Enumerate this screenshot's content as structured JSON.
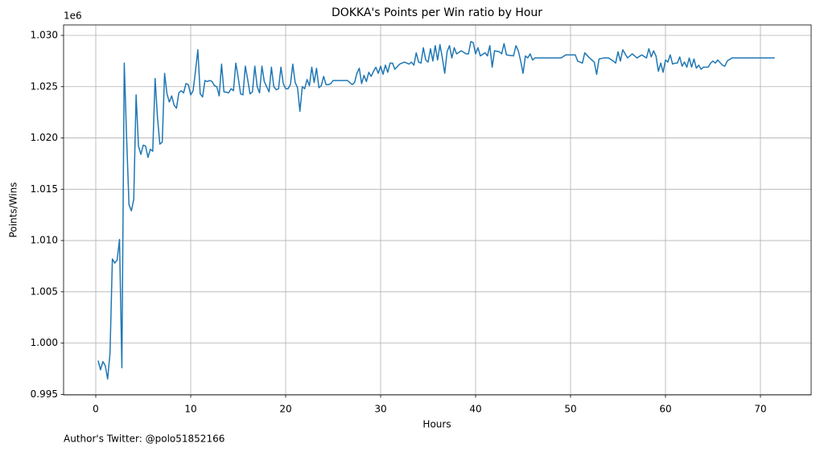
{
  "chart_data": {
    "type": "line",
    "title": "DOKKA's Points per Win ratio by Hour",
    "xlabel": "Hours",
    "ylabel": "Points/Wins",
    "y_offset_label": "1e6",
    "footnote": "Author's Twitter: @polo51852166",
    "x": [
      0.25,
      0.5,
      0.75,
      1,
      1.25,
      1.5,
      1.75,
      2,
      2.25,
      2.5,
      2.75,
      3,
      3.25,
      3.5,
      3.75,
      4,
      4.25,
      4.5,
      4.75,
      5,
      5.25,
      5.5,
      5.75,
      6,
      6.25,
      6.5,
      6.75,
      7,
      7.25,
      7.5,
      7.75,
      8,
      8.25,
      8.5,
      8.75,
      9,
      9.25,
      9.5,
      9.75,
      10,
      10.25,
      10.5,
      10.75,
      11,
      11.25,
      11.5,
      11.75,
      12,
      12.25,
      12.5,
      12.75,
      13,
      13.25,
      13.5,
      14,
      14.25,
      14.5,
      14.75,
      15,
      15.25,
      15.5,
      15.75,
      16,
      16.25,
      16.5,
      16.75,
      17,
      17.25,
      17.5,
      17.75,
      18,
      18.25,
      18.5,
      18.75,
      19,
      19.25,
      19.5,
      19.75,
      20,
      20.25,
      20.5,
      20.75,
      21,
      21.25,
      21.5,
      21.75,
      22,
      22.25,
      22.5,
      22.75,
      23,
      23.25,
      23.5,
      23.75,
      24,
      24.25,
      24.5,
      24.75,
      25,
      26,
      26.5,
      27,
      27.25,
      27.5,
      27.75,
      28,
      28.25,
      28.5,
      28.75,
      29,
      29.25,
      29.5,
      29.75,
      30,
      30.25,
      30.5,
      30.75,
      31,
      31.25,
      31.5,
      32,
      32.5,
      33,
      33.25,
      33.5,
      33.75,
      34,
      34.25,
      34.5,
      34.75,
      35,
      35.25,
      35.5,
      35.75,
      36,
      36.25,
      36.5,
      36.75,
      37,
      37.25,
      37.5,
      37.75,
      38,
      38.5,
      39,
      39.25,
      39.5,
      39.75,
      40,
      40.25,
      40.5,
      41,
      41.25,
      41.5,
      41.75,
      42,
      42.5,
      42.75,
      43,
      43.25,
      44,
      44.25,
      44.5,
      44.75,
      45,
      45.25,
      45.5,
      45.75,
      46,
      46.25,
      47,
      48,
      49,
      49.5,
      50,
      50.5,
      50.75,
      51,
      51.25,
      51.5,
      52,
      52.5,
      52.75,
      53,
      53.5,
      54,
      54.5,
      54.75,
      55,
      55.25,
      55.5,
      56,
      56.5,
      57,
      57.5,
      58,
      58.25,
      58.5,
      58.75,
      59,
      59.25,
      59.5,
      59.75,
      60,
      60.25,
      60.5,
      60.75,
      61,
      61.25,
      61.5,
      61.75,
      62,
      62.25,
      62.5,
      62.75,
      63,
      63.25,
      63.5,
      63.75,
      64,
      64.5,
      64.75,
      65,
      65.25,
      65.5,
      66,
      66.25,
      66.5,
      67,
      71.5
    ],
    "series": [
      {
        "color": "#1f77b4",
        "values": [
          998300,
          997400,
          998200,
          997800,
          996500,
          999000,
          1008200,
          1007800,
          1008100,
          1010100,
          997600,
          1027300,
          1020000,
          1013500,
          1012900,
          1014000,
          1024200,
          1019200,
          1018400,
          1019300,
          1019200,
          1018100,
          1018900,
          1018700,
          1025800,
          1022000,
          1019400,
          1019600,
          1026300,
          1024300,
          1023500,
          1024100,
          1023200,
          1022900,
          1024400,
          1024600,
          1024400,
          1025300,
          1025200,
          1024200,
          1024600,
          1026500,
          1028600,
          1024300,
          1024000,
          1025600,
          1025500,
          1025600,
          1025500,
          1025100,
          1025000,
          1024100,
          1027200,
          1024500,
          1024400,
          1024800,
          1024600,
          1027300,
          1025900,
          1024300,
          1024200,
          1027000,
          1025700,
          1024300,
          1024500,
          1027000,
          1025000,
          1024400,
          1027000,
          1025500,
          1025000,
          1024500,
          1026900,
          1025000,
          1024700,
          1024800,
          1026900,
          1025300,
          1024800,
          1024800,
          1025200,
          1027200,
          1025400,
          1024900,
          1022600,
          1025000,
          1024800,
          1025700,
          1025100,
          1026900,
          1025400,
          1026800,
          1024900,
          1025100,
          1026000,
          1025200,
          1025200,
          1025300,
          1025600,
          1025600,
          1025600,
          1025200,
          1025400,
          1026300,
          1026800,
          1025300,
          1026100,
          1025500,
          1026400,
          1026000,
          1026500,
          1026900,
          1026300,
          1027000,
          1026200,
          1027100,
          1026400,
          1027300,
          1027300,
          1026700,
          1027200,
          1027400,
          1027200,
          1027400,
          1027100,
          1028300,
          1027400,
          1027300,
          1028800,
          1027600,
          1027400,
          1028700,
          1027500,
          1029000,
          1027600,
          1029100,
          1027800,
          1026300,
          1028400,
          1029000,
          1027800,
          1028800,
          1028200,
          1028500,
          1028200,
          1028200,
          1029400,
          1029300,
          1028200,
          1028800,
          1028000,
          1028300,
          1028000,
          1029000,
          1026900,
          1028500,
          1028400,
          1028200,
          1029200,
          1028100,
          1028000,
          1029000,
          1028500,
          1027500,
          1026300,
          1028000,
          1027800,
          1028200,
          1027600,
          1027800,
          1027800,
          1027800,
          1027800,
          1028100,
          1028100,
          1028100,
          1027500,
          1027400,
          1027300,
          1028300,
          1027800,
          1027400,
          1026200,
          1027700,
          1027800,
          1027800,
          1027500,
          1027300,
          1028400,
          1027500,
          1028600,
          1027800,
          1028200,
          1027800,
          1028100,
          1027800,
          1028700,
          1027900,
          1028500,
          1028000,
          1026500,
          1027300,
          1026400,
          1027600,
          1027400,
          1028100,
          1027200,
          1027300,
          1027300,
          1027900,
          1027000,
          1027400,
          1026900,
          1027800,
          1026900,
          1027700,
          1026800,
          1027100,
          1026700,
          1026900,
          1026900,
          1027300,
          1027500,
          1027300,
          1027600,
          1027100,
          1027000,
          1027500,
          1027800,
          1027800
        ]
      }
    ],
    "xlim": [
      -3.39,
      75.34
    ],
    "xticks": [
      0,
      10,
      20,
      30,
      40,
      50,
      60,
      70
    ],
    "ylim": [
      994950,
      1031020
    ],
    "yticks": [
      {
        "value": 995000,
        "label": "0.995"
      },
      {
        "value": 1000000,
        "label": "1.000"
      },
      {
        "value": 1005000,
        "label": "1.005"
      },
      {
        "value": 1010000,
        "label": "1.010"
      },
      {
        "value": 1015000,
        "label": "1.015"
      },
      {
        "value": 1020000,
        "label": "1.020"
      },
      {
        "value": 1025000,
        "label": "1.025"
      },
      {
        "value": 1030000,
        "label": "1.030"
      }
    ],
    "grid": true
  }
}
